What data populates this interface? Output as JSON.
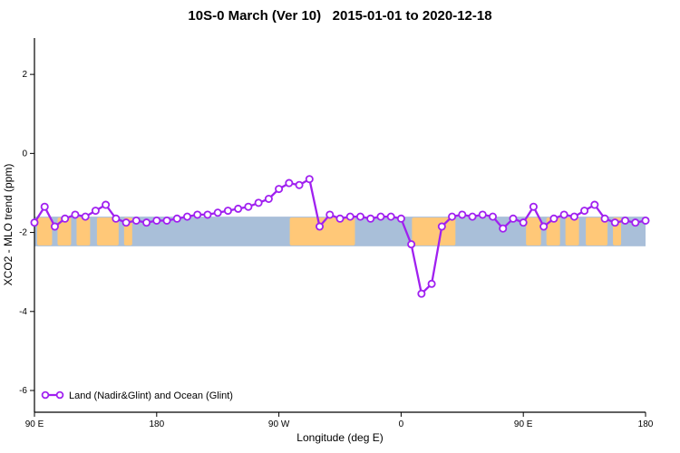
{
  "title": "10S-0 March (Ver 10)   2015-01-01 to 2020-12-18",
  "chart_data": {
    "type": "line",
    "title": "10S-0 March (Ver 10)   2015-01-01 to 2020-12-18",
    "xlabel": "Longitude (deg E)",
    "ylabel": "XCO2 - MLO trend (ppm)",
    "xlim": [
      90,
      540
    ],
    "ylim": [
      -6.55,
      2.92
    ],
    "grid": false,
    "x_ticks": [
      {
        "value": 90,
        "label": "90 E"
      },
      {
        "value": 180,
        "label": "180"
      },
      {
        "value": 270,
        "label": "90 W"
      },
      {
        "value": 360,
        "label": "0"
      },
      {
        "value": 450,
        "label": "90 E"
      },
      {
        "value": 540,
        "label": "180"
      }
    ],
    "y_ticks": [
      {
        "value": 2,
        "label": "2"
      },
      {
        "value": 0,
        "label": "0"
      },
      {
        "value": -2,
        "label": "-2"
      },
      {
        "value": -4,
        "label": "-4"
      },
      {
        "value": -6,
        "label": "-6"
      }
    ],
    "series": [
      {
        "name": "Land (Nadir&Glint) and Ocean (Glint)",
        "color": "#A020F0",
        "marker": "open-circle",
        "marker_fill": "#FFFFFF",
        "x": [
          90,
          97.5,
          105,
          112.5,
          120,
          127.5,
          135,
          142.5,
          150,
          157.5,
          165,
          172.5,
          180,
          187.5,
          195,
          202.5,
          210,
          217.5,
          225,
          232.5,
          240,
          247.5,
          255,
          262.5,
          270,
          277.5,
          285,
          292.5,
          300,
          307.5,
          315,
          322.5,
          330,
          337.5,
          345,
          352.5,
          360,
          367.5,
          375,
          382.5,
          390,
          397.5,
          405,
          412.5,
          420,
          427.5,
          435,
          442.5,
          450,
          457.5,
          465,
          472.5,
          480,
          487.5,
          495,
          502.5,
          510,
          517.5,
          525,
          532.5,
          540
        ],
        "y": [
          -1.75,
          -1.35,
          -1.85,
          -1.65,
          -1.55,
          -1.6,
          -1.45,
          -1.3,
          -1.65,
          -1.75,
          -1.7,
          -1.75,
          -1.7,
          -1.7,
          -1.65,
          -1.6,
          -1.55,
          -1.55,
          -1.5,
          -1.45,
          -1.4,
          -1.35,
          -1.25,
          -1.15,
          -0.9,
          -0.75,
          -0.8,
          -0.65,
          -1.85,
          -1.55,
          -1.65,
          -1.6,
          -1.6,
          -1.65,
          -1.6,
          -1.6,
          -1.65,
          -2.3,
          -3.55,
          -3.3,
          -1.85,
          -1.6,
          -1.55,
          -1.6,
          -1.55,
          -1.6,
          -1.9,
          -1.65,
          -1.75,
          -1.35,
          -1.85,
          -1.65,
          -1.55,
          -1.6,
          -1.45,
          -1.3,
          -1.65,
          -1.75,
          -1.7,
          -1.75,
          -1.7
        ]
      }
    ],
    "map_band": {
      "description": "world map strip for latitude band 10S-0",
      "y_top": -1.6,
      "y_bottom": -2.35,
      "ocean_color": "#A9BFD9",
      "land_color": "#FFC878",
      "land_patches": [
        [
          92,
          103
        ],
        [
          107,
          117
        ],
        [
          121,
          131
        ],
        [
          136,
          152
        ],
        [
          156,
          162
        ],
        [
          278,
          326
        ],
        [
          368,
          400
        ],
        [
          452,
          463
        ],
        [
          467,
          477
        ],
        [
          481,
          491
        ],
        [
          496,
          512
        ],
        [
          516,
          522
        ]
      ]
    },
    "legend": {
      "label": "Land (Nadir&Glint) and Ocean (Glint)",
      "position": "bottom-left",
      "box": false
    }
  }
}
